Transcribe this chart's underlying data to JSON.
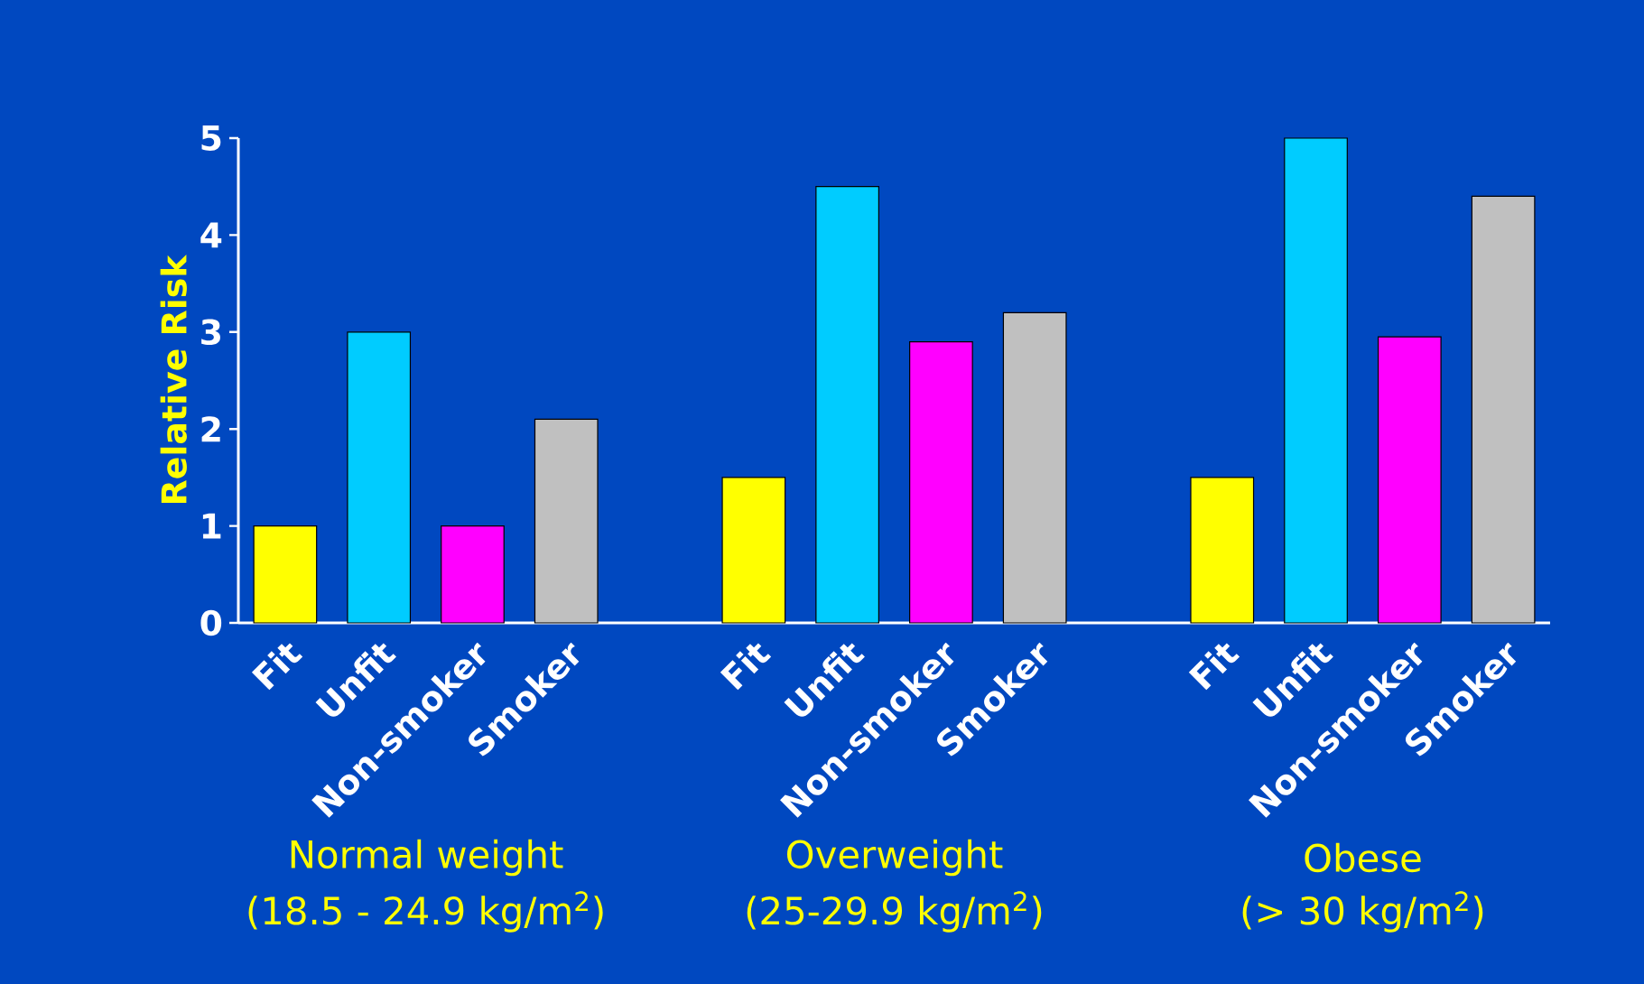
{
  "chart_data": {
    "type": "bar",
    "ylabel": "Relative Risk",
    "categories": [
      "Fit",
      "Unfit",
      "Non-smoker",
      "Smoker",
      null,
      "Fit",
      "Unfit",
      "Non-smoker",
      "Smoker",
      null,
      "Fit",
      "Unfit",
      "Non-smoker",
      "Smoker"
    ],
    "values": [
      1.0,
      3.0,
      1.0,
      2.1,
      null,
      1.5,
      4.5,
      2.9,
      3.2,
      null,
      1.5,
      5.0,
      2.95,
      4.4
    ],
    "colors": [
      "#ffff00",
      "#00ccff",
      "#ff00ff",
      "#c0c0c0",
      null,
      "#ffff00",
      "#00ccff",
      "#ff00ff",
      "#c0c0c0",
      null,
      "#ffff00",
      "#00ccff",
      "#ff00ff",
      "#c0c0c0"
    ],
    "ylim": [
      0,
      5
    ],
    "yticks": [
      0,
      1,
      2,
      3,
      4,
      5
    ],
    "annotations": [
      "Normal weight",
      "(18.5 - 24.9 kg/m$^{2}$)",
      "Overweight",
      "(25-29.9 kg/m$^{2}$)",
      "Obese",
      "(> 30 kg/m$^{2}$)"
    ]
  }
}
